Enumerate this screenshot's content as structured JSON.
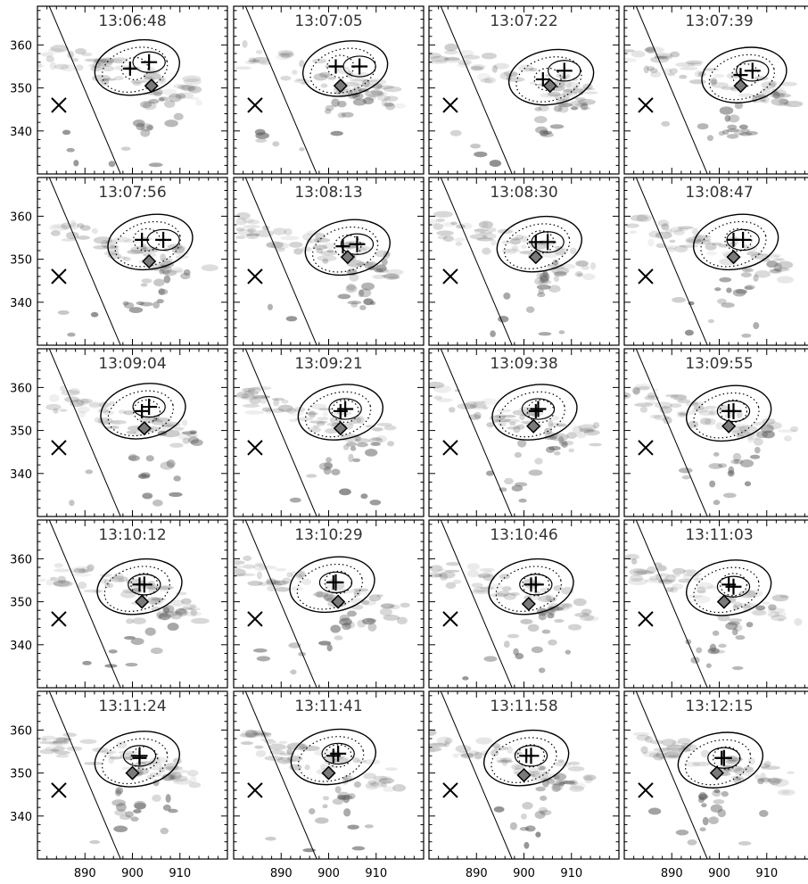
{
  "chart_data": {
    "type": "scatter",
    "layout": "5 rows x 4 columns of image panels with contour overlays",
    "xlim": [
      880,
      920
    ],
    "ylim": [
      330,
      369
    ],
    "x_ticks": [
      890,
      900,
      910
    ],
    "y_ticks": [
      340,
      350,
      360
    ],
    "x_tick_labels": [
      "890",
      "900",
      "910"
    ],
    "y_tick_labels": [
      "340",
      "350",
      "360"
    ],
    "limb_line": {
      "x_top": 882.5,
      "y_top": 369,
      "x_bottom": 897.5,
      "y_bottom": 330
    },
    "reference_cross": {
      "x": 884.5,
      "y": 346
    },
    "colors": {
      "ink": "#000000",
      "diamond_fill": "#7a7a7a",
      "background": "#ffffff",
      "emission": "#555555"
    },
    "panels": [
      {
        "time": "13:06:48",
        "plus1": [
          903.5,
          356
        ],
        "plus2": [
          899.5,
          354.5
        ],
        "diamond": [
          904,
          350.5
        ]
      },
      {
        "time": "13:07:05",
        "plus1": [
          906.5,
          355
        ],
        "plus2": [
          901.5,
          355
        ],
        "diamond": [
          902.5,
          350.5
        ]
      },
      {
        "time": "13:07:22",
        "plus1": [
          908.5,
          354
        ],
        "plus2": [
          904,
          352
        ],
        "diamond": [
          905.5,
          350.5
        ]
      },
      {
        "time": "13:07:39",
        "plus1": [
          907,
          354
        ],
        "plus2": [
          904.5,
          353
        ],
        "diamond": [
          904.5,
          350.5
        ]
      },
      {
        "time": "13:07:56",
        "plus1": [
          906.5,
          354.5
        ],
        "plus2": [
          902,
          354.5
        ],
        "diamond": [
          903.5,
          349.5
        ]
      },
      {
        "time": "13:08:13",
        "plus1": [
          906,
          353.5
        ],
        "plus2": [
          903,
          353
        ],
        "diamond": [
          904,
          350.5
        ]
      },
      {
        "time": "13:08:30",
        "plus1": [
          905,
          354
        ],
        "plus2": [
          902.5,
          354
        ],
        "diamond": [
          902.5,
          350.5
        ]
      },
      {
        "time": "13:08:47",
        "plus1": [
          905,
          354.5
        ],
        "plus2": [
          903,
          354.5
        ],
        "diamond": [
          903,
          350.5
        ]
      },
      {
        "time": "13:09:04",
        "plus1": [
          903.5,
          355.5
        ],
        "plus2": [
          902,
          354.5
        ],
        "diamond": [
          902.5,
          350.5
        ]
      },
      {
        "time": "13:09:21",
        "plus1": [
          903.5,
          355
        ],
        "plus2": [
          902.5,
          354.5
        ],
        "diamond": [
          902.5,
          350.5
        ]
      },
      {
        "time": "13:09:38",
        "plus1": [
          903,
          355
        ],
        "plus2": [
          902.5,
          354.5
        ],
        "diamond": [
          902,
          351
        ]
      },
      {
        "time": "13:09:55",
        "plus1": [
          903,
          354.5
        ],
        "plus2": [
          902,
          354.5
        ],
        "diamond": [
          902,
          351
        ]
      },
      {
        "time": "13:10:12",
        "plus1": [
          902.5,
          354
        ],
        "plus2": [
          901.5,
          354
        ],
        "diamond": [
          902,
          350
        ]
      },
      {
        "time": "13:10:29",
        "plus1": [
          901.5,
          354.5
        ],
        "plus2": [
          901,
          354.5
        ],
        "diamond": [
          902,
          350
        ]
      },
      {
        "time": "13:10:46",
        "plus1": [
          902.5,
          354
        ],
        "plus2": [
          901.5,
          354
        ],
        "diamond": [
          901,
          349.5
        ]
      },
      {
        "time": "13:11:03",
        "plus1": [
          903,
          353.5
        ],
        "plus2": [
          902,
          354
        ],
        "diamond": [
          901,
          350
        ]
      },
      {
        "time": "13:11:24",
        "plus1": [
          901.5,
          354
        ],
        "plus2": [
          901.5,
          353.5
        ],
        "diamond": [
          900,
          350
        ]
      },
      {
        "time": "13:11:41",
        "plus1": [
          902,
          354.5
        ],
        "plus2": [
          901,
          354
        ],
        "diamond": [
          900,
          350
        ]
      },
      {
        "time": "13:11:58",
        "plus1": [
          901.5,
          354
        ],
        "plus2": [
          900.5,
          354
        ],
        "diamond": [
          900,
          349.5
        ]
      },
      {
        "time": "13:12:15",
        "plus1": [
          901,
          353.5
        ],
        "plus2": [
          900.5,
          353.5
        ],
        "diamond": [
          899.5,
          350
        ]
      }
    ]
  }
}
